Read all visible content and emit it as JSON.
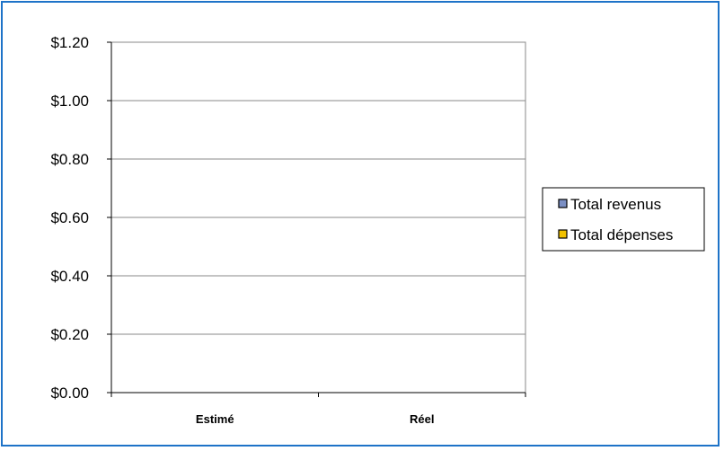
{
  "chart_data": {
    "type": "bar",
    "categories": [
      "Estimé",
      "Réel"
    ],
    "series": [
      {
        "name": "Total revenus",
        "values": [
          0,
          0
        ],
        "color": "#7b8fc4"
      },
      {
        "name": "Total dépenses",
        "values": [
          0,
          0
        ],
        "color": "#f2c200"
      }
    ],
    "yticks": [
      "$0.00",
      "$0.20",
      "$0.40",
      "$0.60",
      "$0.80",
      "$1.00",
      "$1.20"
    ],
    "ylim": [
      0,
      1.2
    ],
    "grid": true,
    "legend_position": "right",
    "colors": {
      "frame": "#1e73c8",
      "grid": "#888888",
      "axis": "#000000"
    }
  }
}
